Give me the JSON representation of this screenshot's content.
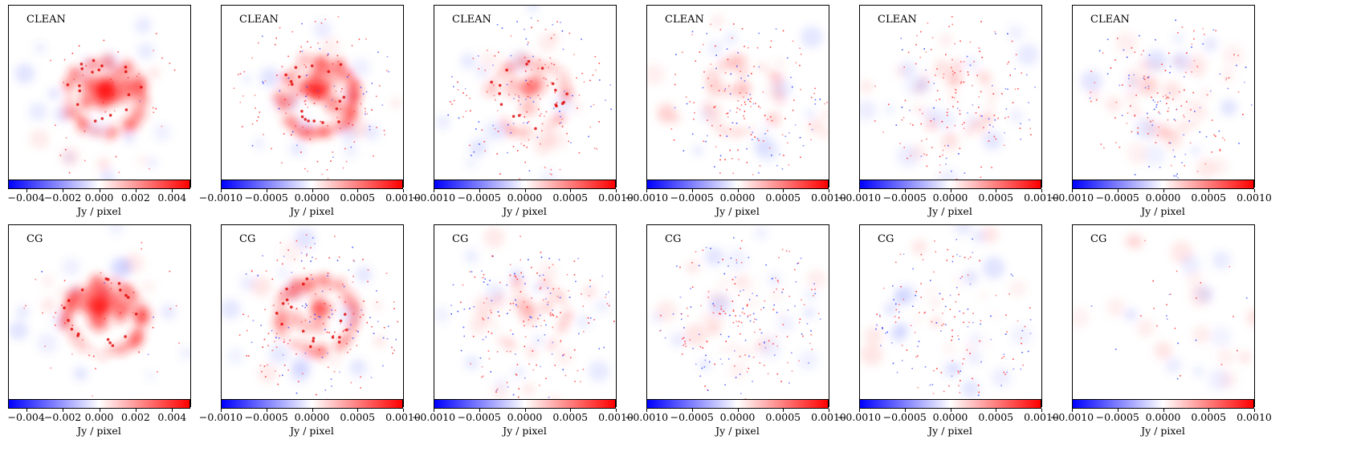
{
  "colors": {
    "negative": "#0000ff",
    "zero": "#ffffff",
    "positive": "#ff0000",
    "frame": "#000000"
  },
  "chart_data": [
    {
      "type": "heatmap",
      "row": 1,
      "col": 1,
      "panel_label": "CLEAN",
      "colormap": "bwr",
      "colorbar": {
        "label": "Jy / pixel",
        "range": [
          -0.005,
          0.005
        ],
        "ticks": [
          "−0.004",
          "−0.002",
          "0.000",
          "0.002",
          "0.004"
        ],
        "tick_values": [
          -0.004,
          -0.002,
          0,
          0.002,
          0.004
        ]
      }
    },
    {
      "type": "heatmap",
      "row": 1,
      "col": 2,
      "panel_label": "CLEAN",
      "colormap": "bwr",
      "colorbar": {
        "label": "Jy / pixel",
        "range": [
          -0.001,
          0.001
        ],
        "ticks": [
          "−0.0010",
          "−0.0005",
          "0.0000",
          "0.0005",
          "0.0010"
        ],
        "tick_values": [
          -0.001,
          -0.0005,
          0,
          0.0005,
          0.001
        ]
      }
    },
    {
      "type": "heatmap",
      "row": 1,
      "col": 3,
      "panel_label": "CLEAN",
      "colormap": "bwr",
      "colorbar": {
        "label": "Jy / pixel",
        "range": [
          -0.001,
          0.001
        ],
        "ticks": [
          "−0.0010",
          "−0.0005",
          "0.0000",
          "0.0005",
          "0.0010"
        ],
        "tick_values": [
          -0.001,
          -0.0005,
          0,
          0.0005,
          0.001
        ]
      }
    },
    {
      "type": "heatmap",
      "row": 1,
      "col": 4,
      "panel_label": "CLEAN",
      "colormap": "bwr",
      "colorbar": {
        "label": "Jy / pixel",
        "range": [
          -0.001,
          0.001
        ],
        "ticks": [
          "−0.0010",
          "−0.0005",
          "0.0000",
          "0.0005",
          "0.0010"
        ],
        "tick_values": [
          -0.001,
          -0.0005,
          0,
          0.0005,
          0.001
        ]
      }
    },
    {
      "type": "heatmap",
      "row": 1,
      "col": 5,
      "panel_label": "CLEAN",
      "colormap": "bwr",
      "colorbar": {
        "label": "Jy / pixel",
        "range": [
          -0.001,
          0.001
        ],
        "ticks": [
          "−0.0010",
          "−0.0005",
          "0.0000",
          "0.0005",
          "0.0010"
        ],
        "tick_values": [
          -0.001,
          -0.0005,
          0,
          0.0005,
          0.001
        ]
      }
    },
    {
      "type": "heatmap",
      "row": 1,
      "col": 6,
      "panel_label": "CLEAN",
      "colormap": "bwr",
      "colorbar": {
        "label": "Jy / pixel",
        "range": [
          -0.001,
          0.001
        ],
        "ticks": [
          "−0.0010",
          "−0.0005",
          "0.0000",
          "0.0005",
          "0.0010"
        ],
        "tick_values": [
          -0.001,
          -0.0005,
          0,
          0.0005,
          0.001
        ]
      }
    },
    {
      "type": "heatmap",
      "row": 2,
      "col": 1,
      "panel_label": "CG",
      "colormap": "bwr",
      "colorbar": {
        "label": "Jy / pixel",
        "range": [
          -0.005,
          0.005
        ],
        "ticks": [
          "−0.004",
          "−0.002",
          "0.000",
          "0.002",
          "0.004"
        ],
        "tick_values": [
          -0.004,
          -0.002,
          0,
          0.002,
          0.004
        ]
      }
    },
    {
      "type": "heatmap",
      "row": 2,
      "col": 2,
      "panel_label": "CG",
      "colormap": "bwr",
      "colorbar": {
        "label": "Jy / pixel",
        "range": [
          -0.001,
          0.001
        ],
        "ticks": [
          "−0.0010",
          "−0.0005",
          "0.0000",
          "0.0005",
          "0.0010"
        ],
        "tick_values": [
          -0.001,
          -0.0005,
          0,
          0.0005,
          0.001
        ]
      }
    },
    {
      "type": "heatmap",
      "row": 2,
      "col": 3,
      "panel_label": "CG",
      "colormap": "bwr",
      "colorbar": {
        "label": "Jy / pixel",
        "range": [
          -0.001,
          0.001
        ],
        "ticks": [
          "−0.0010",
          "−0.0005",
          "0.0000",
          "0.0005",
          "0.0010"
        ],
        "tick_values": [
          -0.001,
          -0.0005,
          0,
          0.0005,
          0.001
        ]
      }
    },
    {
      "type": "heatmap",
      "row": 2,
      "col": 4,
      "panel_label": "CG",
      "colormap": "bwr",
      "colorbar": {
        "label": "Jy / pixel",
        "range": [
          -0.001,
          0.001
        ],
        "ticks": [
          "−0.0010",
          "−0.0005",
          "0.0000",
          "0.0005",
          "0.0010"
        ],
        "tick_values": [
          -0.001,
          -0.0005,
          0,
          0.0005,
          0.001
        ]
      }
    },
    {
      "type": "heatmap",
      "row": 2,
      "col": 5,
      "panel_label": "CG",
      "colormap": "bwr",
      "colorbar": {
        "label": "Jy / pixel",
        "range": [
          -0.001,
          0.001
        ],
        "ticks": [
          "−0.0010",
          "−0.0005",
          "0.0000",
          "0.0005",
          "0.0010"
        ],
        "tick_values": [
          -0.001,
          -0.0005,
          0,
          0.0005,
          0.001
        ]
      }
    },
    {
      "type": "heatmap",
      "row": 2,
      "col": 6,
      "panel_label": "CG",
      "colormap": "bwr",
      "colorbar": {
        "label": "Jy / pixel",
        "range": [
          -0.001,
          0.001
        ],
        "ticks": [
          "−0.0010",
          "−0.0005",
          "0.0000",
          "0.0005",
          "0.0010"
        ],
        "tick_values": [
          -0.001,
          -0.0005,
          0,
          0.0005,
          0.001
        ]
      }
    }
  ]
}
